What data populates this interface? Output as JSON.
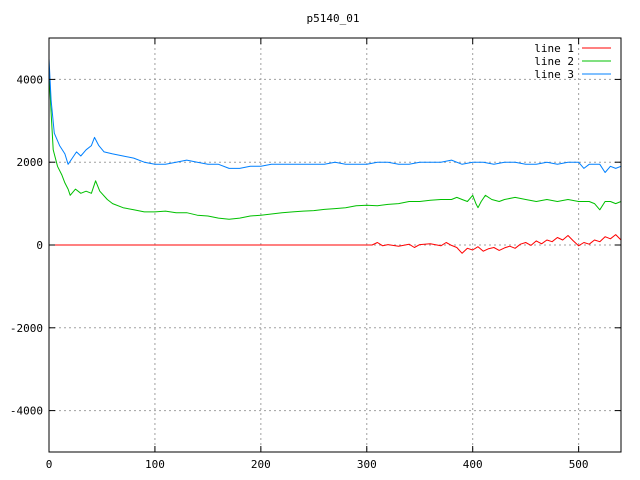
{
  "chart_data": {
    "type": "line",
    "title": "p5140_01",
    "xlabel": "",
    "ylabel": "",
    "xlim": [
      0,
      540
    ],
    "ylim": [
      -5000,
      5000
    ],
    "xticks": [
      0,
      100,
      200,
      300,
      400,
      500
    ],
    "yticks": [
      -4000,
      -2000,
      0,
      2000,
      4000
    ],
    "grid": true,
    "legend_position": "top-right",
    "series": [
      {
        "name": "line 1",
        "color": "#ff0000",
        "points": [
          [
            0,
            0
          ],
          [
            50,
            0
          ],
          [
            100,
            0
          ],
          [
            150,
            0
          ],
          [
            200,
            0
          ],
          [
            250,
            0
          ],
          [
            300,
            0
          ],
          [
            305,
            0
          ],
          [
            310,
            60
          ],
          [
            315,
            -20
          ],
          [
            320,
            10
          ],
          [
            330,
            -30
          ],
          [
            340,
            20
          ],
          [
            345,
            -60
          ],
          [
            350,
            10
          ],
          [
            360,
            30
          ],
          [
            370,
            -20
          ],
          [
            375,
            60
          ],
          [
            380,
            -10
          ],
          [
            385,
            -60
          ],
          [
            390,
            -200
          ],
          [
            395,
            -80
          ],
          [
            400,
            -120
          ],
          [
            405,
            -40
          ],
          [
            410,
            -150
          ],
          [
            415,
            -90
          ],
          [
            420,
            -60
          ],
          [
            425,
            -130
          ],
          [
            430,
            -70
          ],
          [
            435,
            -30
          ],
          [
            440,
            -80
          ],
          [
            445,
            20
          ],
          [
            450,
            60
          ],
          [
            455,
            -10
          ],
          [
            460,
            100
          ],
          [
            465,
            30
          ],
          [
            470,
            120
          ],
          [
            475,
            80
          ],
          [
            480,
            180
          ],
          [
            485,
            120
          ],
          [
            490,
            230
          ],
          [
            495,
            100
          ],
          [
            500,
            -20
          ],
          [
            505,
            60
          ],
          [
            510,
            20
          ],
          [
            515,
            120
          ],
          [
            520,
            80
          ],
          [
            525,
            200
          ],
          [
            530,
            150
          ],
          [
            535,
            250
          ],
          [
            540,
            120
          ]
        ]
      },
      {
        "name": "line 2",
        "color": "#00c000",
        "points": [
          [
            0,
            4200
          ],
          [
            2,
            3200
          ],
          [
            4,
            2300
          ],
          [
            8,
            1900
          ],
          [
            12,
            1700
          ],
          [
            15,
            1500
          ],
          [
            18,
            1350
          ],
          [
            20,
            1200
          ],
          [
            25,
            1350
          ],
          [
            30,
            1250
          ],
          [
            35,
            1300
          ],
          [
            40,
            1250
          ],
          [
            44,
            1550
          ],
          [
            48,
            1300
          ],
          [
            55,
            1100
          ],
          [
            60,
            1000
          ],
          [
            70,
            900
          ],
          [
            80,
            850
          ],
          [
            90,
            800
          ],
          [
            100,
            800
          ],
          [
            110,
            820
          ],
          [
            120,
            780
          ],
          [
            130,
            780
          ],
          [
            140,
            720
          ],
          [
            150,
            700
          ],
          [
            160,
            650
          ],
          [
            170,
            620
          ],
          [
            180,
            650
          ],
          [
            190,
            700
          ],
          [
            200,
            720
          ],
          [
            210,
            750
          ],
          [
            220,
            780
          ],
          [
            230,
            800
          ],
          [
            240,
            820
          ],
          [
            250,
            830
          ],
          [
            260,
            860
          ],
          [
            270,
            880
          ],
          [
            280,
            900
          ],
          [
            290,
            950
          ],
          [
            300,
            960
          ],
          [
            310,
            950
          ],
          [
            320,
            980
          ],
          [
            330,
            1000
          ],
          [
            340,
            1050
          ],
          [
            350,
            1050
          ],
          [
            360,
            1080
          ],
          [
            370,
            1100
          ],
          [
            380,
            1100
          ],
          [
            385,
            1150
          ],
          [
            390,
            1100
          ],
          [
            395,
            1050
          ],
          [
            400,
            1200
          ],
          [
            403,
            1000
          ],
          [
            405,
            900
          ],
          [
            408,
            1050
          ],
          [
            412,
            1200
          ],
          [
            418,
            1100
          ],
          [
            425,
            1050
          ],
          [
            430,
            1100
          ],
          [
            440,
            1150
          ],
          [
            450,
            1100
          ],
          [
            460,
            1050
          ],
          [
            470,
            1100
          ],
          [
            480,
            1050
          ],
          [
            490,
            1100
          ],
          [
            500,
            1050
          ],
          [
            510,
            1050
          ],
          [
            515,
            1000
          ],
          [
            520,
            850
          ],
          [
            525,
            1050
          ],
          [
            530,
            1050
          ],
          [
            535,
            1000
          ],
          [
            540,
            1050
          ]
        ]
      },
      {
        "name": "line 3",
        "color": "#0080ff",
        "points": [
          [
            0,
            4500
          ],
          [
            2,
            3500
          ],
          [
            5,
            2700
          ],
          [
            10,
            2400
          ],
          [
            15,
            2200
          ],
          [
            18,
            1950
          ],
          [
            22,
            2100
          ],
          [
            26,
            2250
          ],
          [
            30,
            2150
          ],
          [
            35,
            2300
          ],
          [
            40,
            2400
          ],
          [
            43,
            2600
          ],
          [
            47,
            2400
          ],
          [
            52,
            2250
          ],
          [
            60,
            2200
          ],
          [
            70,
            2150
          ],
          [
            80,
            2100
          ],
          [
            90,
            2000
          ],
          [
            100,
            1950
          ],
          [
            110,
            1950
          ],
          [
            120,
            2000
          ],
          [
            130,
            2050
          ],
          [
            140,
            2000
          ],
          [
            150,
            1950
          ],
          [
            160,
            1950
          ],
          [
            170,
            1850
          ],
          [
            180,
            1850
          ],
          [
            190,
            1900
          ],
          [
            200,
            1900
          ],
          [
            210,
            1950
          ],
          [
            220,
            1950
          ],
          [
            230,
            1950
          ],
          [
            240,
            1950
          ],
          [
            250,
            1950
          ],
          [
            260,
            1950
          ],
          [
            270,
            2000
          ],
          [
            280,
            1950
          ],
          [
            290,
            1950
          ],
          [
            300,
            1950
          ],
          [
            310,
            2000
          ],
          [
            320,
            2000
          ],
          [
            330,
            1950
          ],
          [
            340,
            1950
          ],
          [
            350,
            2000
          ],
          [
            360,
            2000
          ],
          [
            370,
            2000
          ],
          [
            380,
            2050
          ],
          [
            390,
            1950
          ],
          [
            400,
            2000
          ],
          [
            410,
            2000
          ],
          [
            420,
            1950
          ],
          [
            430,
            2000
          ],
          [
            440,
            2000
          ],
          [
            450,
            1950
          ],
          [
            460,
            1950
          ],
          [
            470,
            2000
          ],
          [
            480,
            1950
          ],
          [
            490,
            2000
          ],
          [
            500,
            2000
          ],
          [
            505,
            1850
          ],
          [
            510,
            1950
          ],
          [
            520,
            1950
          ],
          [
            525,
            1750
          ],
          [
            530,
            1900
          ],
          [
            535,
            1850
          ],
          [
            540,
            1900
          ]
        ]
      }
    ]
  }
}
